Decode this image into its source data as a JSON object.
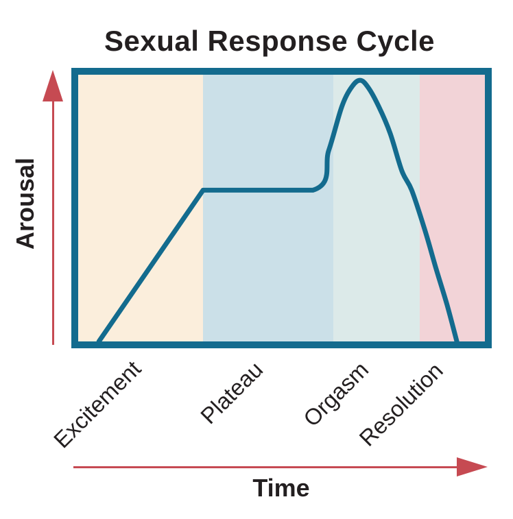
{
  "title": "Sexual Response Cycle",
  "y_axis": {
    "label": "Arousal"
  },
  "x_axis": {
    "label": "Time"
  },
  "phases": [
    {
      "label": "Excitement",
      "band_color": "#FBEEDC",
      "width_pct": 30.7
    },
    {
      "label": "Plateau",
      "band_color": "#CBE0E8",
      "width_pct": 32.0
    },
    {
      "label": "Orgasm",
      "band_color": "#DCEAE9",
      "width_pct": 21.3
    },
    {
      "label": "Resolution",
      "band_color": "#F2D3D7",
      "width_pct": 16.0
    }
  ],
  "colors": {
    "curve": "#136B8E",
    "plot_border": "#136B8E",
    "axis_arrow": "#C64A52",
    "text": "#231F20"
  },
  "chart_data": {
    "type": "line",
    "title": "Sexual Response Cycle",
    "xlabel": "Time",
    "ylabel": "Arousal",
    "grid": false,
    "ticks": "none",
    "axis_style": "red arrows pointing up (Arousal) and right (Time)",
    "xlim_pct": [
      0,
      100
    ],
    "ylim_pct": [
      0,
      100
    ],
    "phases": [
      {
        "name": "Excitement",
        "x_start_pct": 0,
        "x_end_pct": 30.7,
        "band_color": "#FBEEDC"
      },
      {
        "name": "Plateau",
        "x_start_pct": 30.7,
        "x_end_pct": 62.7,
        "band_color": "#CBE0E8"
      },
      {
        "name": "Orgasm",
        "x_start_pct": 62.7,
        "x_end_pct": 84.0,
        "band_color": "#DCEAE9"
      },
      {
        "name": "Resolution",
        "x_start_pct": 84.0,
        "x_end_pct": 100,
        "band_color": "#F2D3D7"
      }
    ],
    "series": [
      {
        "name": "Arousal level",
        "points_pct": {
          "straight": [
            [
              5.1,
              0
            ],
            [
              30.7,
              56.7
            ],
            [
              57.7,
              56.7
            ]
          ],
          "smooth": [
            [
              57.7,
              56.7
            ],
            [
              61.6,
              71.6
            ],
            [
              64.9,
              88.4
            ],
            [
              67.5,
              95.9
            ],
            [
              69.5,
              97.9
            ],
            [
              71.5,
              94.8
            ],
            [
              73.9,
              88.1
            ],
            [
              76.7,
              78.1
            ],
            [
              79.6,
              63.9
            ],
            [
              82.0,
              56.7
            ],
            [
              85.2,
              42.0
            ],
            [
              88.0,
              27.3
            ],
            [
              90.7,
              13.7
            ],
            [
              93.1,
              0
            ]
          ]
        },
        "shape_summary": "rises linearly through Excitement, flat through Plateau, sharp bell peak in Orgasm, steep fall to baseline in Resolution"
      }
    ]
  }
}
